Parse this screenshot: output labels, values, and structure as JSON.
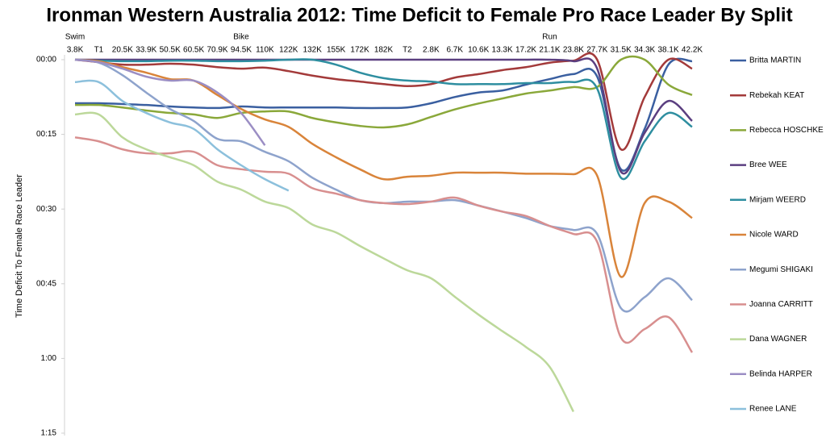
{
  "chart_data": {
    "type": "line",
    "title": "Ironman Western Australia 2012: Time Deficit to Female Pro Race Leader By Split",
    "y_label": "Time Deficit To Female Race Leader",
    "categories": [
      "3.8K",
      "T1",
      "20.5K",
      "33.9K",
      "50.5K",
      "60.5K",
      "70.9K",
      "94.5K",
      "110K",
      "122K",
      "132K",
      "155K",
      "172K",
      "182K",
      "T2",
      "2.8K",
      "6.7K",
      "10.6K",
      "13.3K",
      "17.2K",
      "21.1K",
      "23.8K",
      "27.7K",
      "31.5K",
      "34.3K",
      "38.1K",
      "42.2K"
    ],
    "section_labels": [
      "Swim",
      null,
      null,
      null,
      null,
      null,
      null,
      "Bike",
      null,
      null,
      null,
      null,
      null,
      null,
      null,
      null,
      null,
      null,
      null,
      null,
      "Run",
      null,
      null,
      null,
      null,
      null,
      null
    ],
    "ylim": [
      0,
      75
    ],
    "y_reversed": true,
    "yticks": [
      {
        "value": 0,
        "label": "00:00"
      },
      {
        "value": 15,
        "label": "00:15"
      },
      {
        "value": 30,
        "label": "00:30"
      },
      {
        "value": 45,
        "label": "00:45"
      },
      {
        "value": 60,
        "label": "1:00"
      },
      {
        "value": 75,
        "label": "1:15"
      }
    ],
    "grid": false,
    "legend": "right",
    "series": [
      {
        "name": "Britta MARTIN",
        "color": "#3a5fa0",
        "values": [
          8.75,
          8.75,
          8.9,
          9.1,
          9.4,
          9.6,
          9.7,
          9.4,
          9.6,
          9.6,
          9.6,
          9.6,
          9.7,
          9.7,
          9.6,
          8.75,
          7.5,
          6.6,
          6.2,
          5.0,
          3.9,
          2.9,
          3.4,
          22.0,
          13.9,
          1.0,
          0.3
        ]
      },
      {
        "name": "Rebekah KEAT",
        "color": "#a33a3a",
        "values": [
          0,
          0.5,
          1.0,
          1.0,
          0.8,
          1.0,
          1.5,
          1.8,
          1.6,
          2.3,
          3.2,
          3.9,
          4.4,
          4.9,
          5.3,
          4.9,
          3.6,
          2.9,
          2.1,
          1.5,
          0.6,
          0.2,
          0,
          18.0,
          7.5,
          0,
          1.8
        ]
      },
      {
        "name": "Rebecca HOSCHKE",
        "color": "#8aa83a",
        "values": [
          9.1,
          9.1,
          9.6,
          10.2,
          10.7,
          11.0,
          11.7,
          10.7,
          10.4,
          10.4,
          11.7,
          12.6,
          13.3,
          13.6,
          13.0,
          11.5,
          10.0,
          8.8,
          7.8,
          6.8,
          6.2,
          5.5,
          5.5,
          0,
          0,
          5.0,
          7.1
        ]
      },
      {
        "name": "Bree WEE",
        "color": "#5b3f80",
        "values": [
          0,
          0,
          0,
          0,
          0,
          0,
          0,
          0,
          0,
          0,
          0,
          0,
          0,
          0,
          0,
          0,
          0,
          0,
          0,
          0,
          0,
          0.3,
          1.8,
          22.5,
          14.7,
          8.3,
          12.3
        ]
      },
      {
        "name": "Mirjam WEERD",
        "color": "#2e8ea0",
        "values": [
          0,
          0.2,
          0.3,
          0.3,
          0.2,
          0.2,
          0.3,
          0.3,
          0.2,
          0,
          0,
          1.0,
          2.6,
          3.7,
          4.2,
          4.4,
          4.9,
          4.9,
          4.9,
          4.7,
          4.7,
          4.5,
          5.8,
          23.7,
          16.4,
          10.7,
          13.5
        ]
      },
      {
        "name": "Nicole WARD",
        "color": "#d9843a",
        "values": [
          0,
          0.3,
          1.5,
          2.6,
          3.9,
          4.2,
          7.1,
          9.9,
          12.0,
          13.5,
          16.9,
          19.6,
          22.0,
          24.0,
          23.5,
          23.3,
          22.7,
          22.7,
          22.7,
          22.9,
          22.9,
          23.0,
          23.3,
          43.6,
          28.8,
          28.5,
          31.8
        ]
      },
      {
        "name": "Megumi SHIGAKI",
        "color": "#8ea3cc",
        "values": [
          0,
          0.6,
          3.1,
          6.6,
          9.9,
          12.3,
          15.9,
          16.4,
          18.5,
          20.4,
          23.7,
          26.1,
          28.2,
          28.8,
          28.5,
          28.5,
          28.2,
          29.3,
          30.5,
          31.8,
          33.4,
          34.2,
          35.0,
          49.9,
          47.7,
          43.9,
          48.3
        ]
      },
      {
        "name": "Joanna CARRITT",
        "color": "#d88f8f",
        "values": [
          15.6,
          16.4,
          18.0,
          18.8,
          18.8,
          18.5,
          21.2,
          22.0,
          22.5,
          22.9,
          25.8,
          26.9,
          28.2,
          28.8,
          29.0,
          28.5,
          27.7,
          29.3,
          30.5,
          31.4,
          33.4,
          35.0,
          36.6,
          55.8,
          54.1,
          51.7,
          58.8
        ]
      },
      {
        "name": "Dana WAGNER",
        "color": "#bcd89a",
        "values": [
          11.0,
          11.0,
          15.6,
          18.0,
          19.6,
          21.2,
          24.5,
          26.1,
          28.5,
          29.8,
          33.1,
          34.7,
          37.4,
          39.9,
          42.3,
          43.9,
          47.6,
          51.2,
          54.5,
          57.7,
          61.7,
          70.7,
          null,
          null,
          null,
          null,
          null
        ]
      },
      {
        "name": "Belinda HARPER",
        "color": "#9b8ec4",
        "values": [
          0,
          0.5,
          1.8,
          3.4,
          4.2,
          4.2,
          6.6,
          10.7,
          17.2,
          null,
          null,
          null,
          null,
          null,
          null,
          null,
          null,
          null,
          null,
          null,
          null,
          null,
          null,
          null,
          null,
          null,
          null
        ]
      },
      {
        "name": "Renee LANE",
        "color": "#8cc0dc",
        "values": [
          4.5,
          4.5,
          8.3,
          10.7,
          12.6,
          13.9,
          18.0,
          21.2,
          24.0,
          26.3,
          null,
          null,
          null,
          null,
          null,
          null,
          null,
          null,
          null,
          null,
          null,
          null,
          null,
          null,
          null,
          null,
          null
        ]
      }
    ]
  }
}
